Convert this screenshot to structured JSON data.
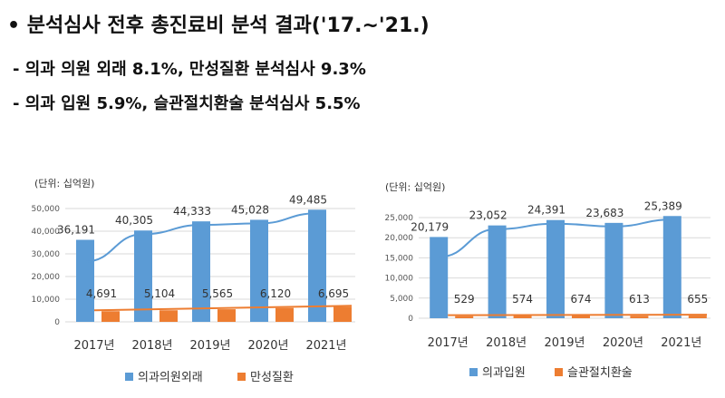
{
  "headline": {
    "bullet": "•",
    "title": "분석심사 전후 총진료비 분석 결과('17.~'21.)",
    "line2": "- 의과 의원 외래 8.1%, 만성질환 분석심사 9.3%",
    "line3": "- 의과 입원 5.9%, 슬관절치환술 분석심사 5.5%"
  },
  "colors": {
    "series1": "#5b9bd5",
    "series2": "#ed7d31",
    "grid": "#d9d9d9",
    "trend": "#5b9bd5"
  },
  "chart_data": [
    {
      "type": "bar",
      "unit_label": "(단위: 십억원)",
      "categories": [
        "2017년",
        "2018년",
        "2019년",
        "2020년",
        "2021년"
      ],
      "yticks": [
        "0",
        "10,000",
        "20,000",
        "30,000",
        "40,000",
        "50,000"
      ],
      "ylim": [
        0,
        50000
      ],
      "series": [
        {
          "name": "의과의원외래",
          "values": [
            36191,
            40305,
            44333,
            45028,
            49485
          ],
          "labels": [
            "36,191",
            "40,305",
            "44,333",
            "45,028",
            "49,485"
          ]
        },
        {
          "name": "만성질환",
          "values": [
            4691,
            5104,
            5565,
            6120,
            6695
          ],
          "labels": [
            "4,691",
            "5,104",
            "5,565",
            "6,120",
            "6,695"
          ]
        }
      ],
      "trendline": "linear"
    },
    {
      "type": "bar",
      "unit_label": "(단위: 십억원)",
      "categories": [
        "2017년",
        "2018년",
        "2019년",
        "2020년",
        "2021년"
      ],
      "yticks": [
        "0",
        "5,000",
        "10,000",
        "15,000",
        "20,000",
        "25,000"
      ],
      "ylim": [
        0,
        25000
      ],
      "series": [
        {
          "name": "의과입원",
          "values": [
            20179,
            23052,
            24391,
            23683,
            25389
          ],
          "labels": [
            "20,179",
            "23,052",
            "24,391",
            "23,683",
            "25,389"
          ]
        },
        {
          "name": "슬관절치환술",
          "values": [
            529,
            574,
            674,
            613,
            655
          ],
          "labels": [
            "529",
            "574",
            "674",
            "613",
            "655"
          ]
        }
      ],
      "trendline": "linear"
    }
  ]
}
